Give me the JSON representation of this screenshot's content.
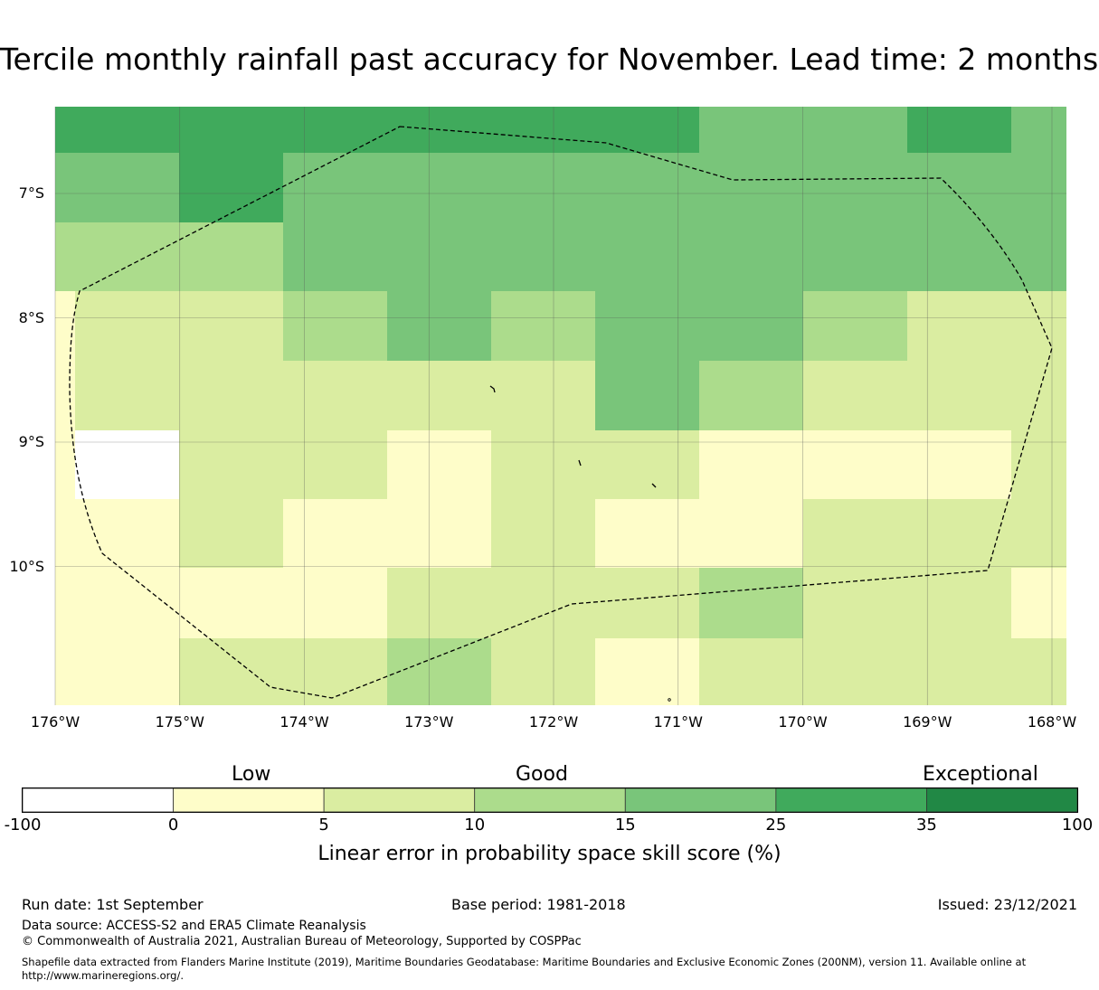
{
  "title": "Tercile monthly rainfall past accuracy for November. Lead time: 2 months",
  "map": {
    "lat_labels": [
      "7°S",
      "8°S",
      "9°S",
      "10°S"
    ],
    "lat_values": [
      -7,
      -8,
      -9,
      -10
    ],
    "lon_labels": [
      "176°W",
      "175°W",
      "174°W",
      "173°W",
      "172°W",
      "171°W",
      "170°W",
      "169°W",
      "168°W"
    ],
    "lon_values": [
      -176,
      -175,
      -174,
      -173,
      -172,
      -171,
      -170,
      -169,
      -168
    ],
    "boundary_name_shown": false,
    "colors": {
      "n/a": "#ffffff",
      "0-5": "#fefdc9",
      "5-10": "#daeda1",
      "10-15": "#acdc8c",
      "15-25": "#79c57a",
      "25-35": "#40aa5c",
      "35-100": "#218845"
    },
    "grid_rows": [
      [
        "25-35",
        "25-35",
        "25-35",
        "25-35",
        "25-35",
        "25-35",
        "15-25",
        "15-25",
        "25-35",
        "15-25"
      ],
      [
        "15-25",
        "25-35",
        "15-25",
        "15-25",
        "15-25",
        "15-25",
        "15-25",
        "15-25",
        "15-25",
        "15-25"
      ],
      [
        "10-15",
        "10-15",
        "15-25",
        "15-25",
        "15-25",
        "15-25",
        "15-25",
        "15-25",
        "15-25",
        "15-25"
      ],
      [
        "5-10",
        "5-10",
        "10-15",
        "15-25",
        "10-15",
        "15-25",
        "15-25",
        "10-15",
        "5-10",
        "5-10"
      ],
      [
        "5-10",
        "5-10",
        "5-10",
        "5-10",
        "5-10",
        "15-25",
        "10-15",
        "5-10",
        "5-10",
        "5-10"
      ],
      [
        "n/a",
        "5-10",
        "5-10",
        "0-5",
        "5-10",
        "5-10",
        "0-5",
        "0-5",
        "0-5",
        "5-10"
      ],
      [
        "0-5",
        "5-10",
        "0-5",
        "0-5",
        "5-10",
        "0-5",
        "0-5",
        "5-10",
        "5-10",
        "5-10"
      ],
      [
        "0-5",
        "0-5",
        "0-5",
        "5-10",
        "5-10",
        "5-10",
        "10-15",
        "5-10",
        "5-10",
        "0-5"
      ],
      [
        "0-5",
        "5-10",
        "5-10",
        "10-15",
        "5-10",
        "0-5",
        "5-10",
        "5-10",
        "5-10",
        "5-10"
      ]
    ]
  },
  "legend": {
    "categories": [
      "Low",
      "Good",
      "Exceptional"
    ],
    "ticks": [
      "-100",
      "0",
      "5",
      "10",
      "15",
      "25",
      "35",
      "100"
    ],
    "bins": [
      {
        "range": "-100 to 0",
        "color": "#ffffff"
      },
      {
        "range": "0 to 5",
        "color": "#fefdc9"
      },
      {
        "range": "5 to 10",
        "color": "#daeda1"
      },
      {
        "range": "10 to 15",
        "color": "#acdc8c"
      },
      {
        "range": "15 to 25",
        "color": "#79c57a"
      },
      {
        "range": "25 to 35",
        "color": "#40aa5c"
      },
      {
        "range": "35 to 100",
        "color": "#218845"
      }
    ],
    "title": "Linear error in probability space skill score (%)"
  },
  "footer": {
    "run_date": "Run date: 1st September",
    "base_period": "Base period: 1981-2018",
    "issued": "Issued: 23/12/2021",
    "data_source": "Data source: ACCESS-S2 and ERA5 Climate Reanalysis",
    "copyright": "© Commonwealth of Australia 2021, Australian Bureau of Meteorology, Supported by COSPPac",
    "shapefile": "Shapefile data extracted from Flanders Marine Institute (2019), Maritime Boundaries Geodatabase: Maritime Boundaries and Exclusive Economic Zones (200NM), version 11. Available online at http://www.marineregions.org/."
  }
}
